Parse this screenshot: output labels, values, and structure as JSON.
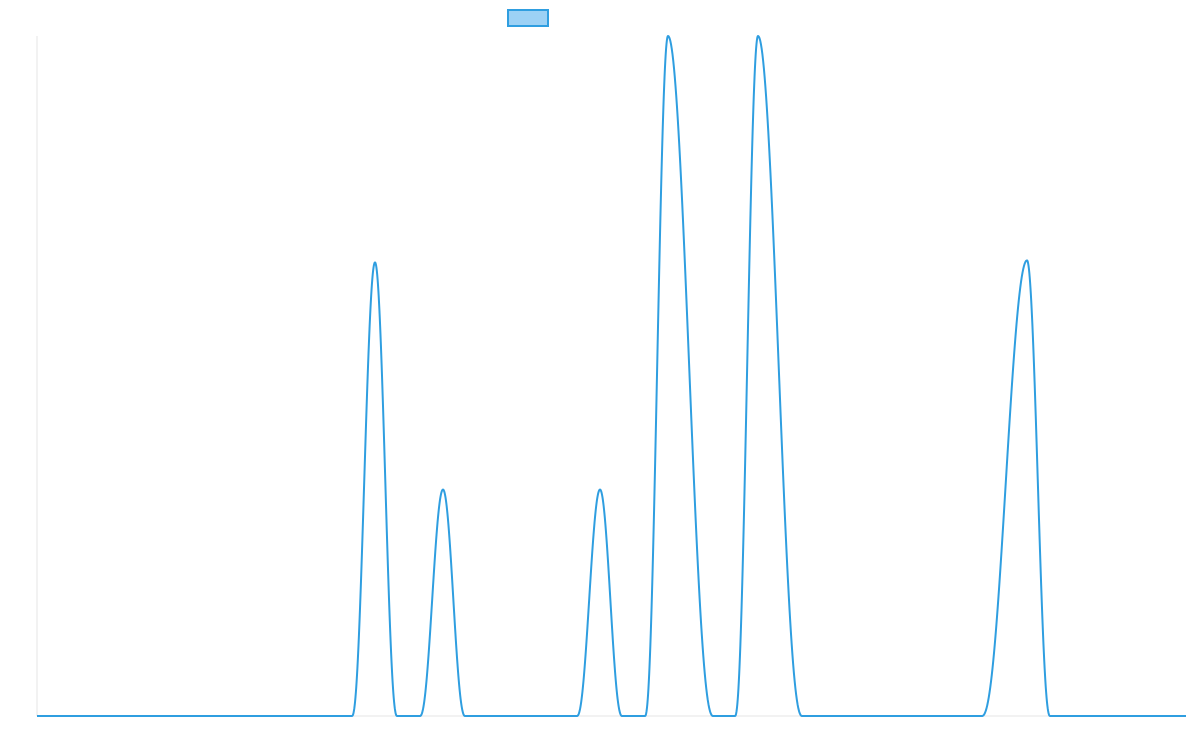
{
  "chart_data": {
    "type": "area",
    "title": "",
    "xlabel": "",
    "ylabel": "",
    "x_range": [
      0,
      1149
    ],
    "y_range": [
      0,
      1
    ],
    "grid": false,
    "legend": {
      "placement": "top-center",
      "entries": [
        {
          "label": "",
          "fill": "#9cd1f5",
          "stroke": "#2f9ee0"
        }
      ]
    },
    "colors": {
      "line": "#2f9ee0",
      "axis": "#e6e6e6"
    },
    "series": [
      {
        "baseline": 0,
        "peaks": [
          {
            "center": 338,
            "height": 0.667,
            "left_base": 315,
            "right_base": 360
          },
          {
            "center": 406,
            "height": 0.333,
            "left_base": 383,
            "right_base": 428
          },
          {
            "center": 563,
            "height": 0.333,
            "left_base": 540,
            "right_base": 585
          },
          {
            "center": 631,
            "height": 1.0,
            "left_base": 608,
            "right_base": 676
          },
          {
            "center": 721,
            "height": 1.0,
            "left_base": 698,
            "right_base": 765
          },
          {
            "center": 990,
            "height": 0.67,
            "left_base": 945,
            "right_base": 1013
          }
        ]
      }
    ]
  }
}
